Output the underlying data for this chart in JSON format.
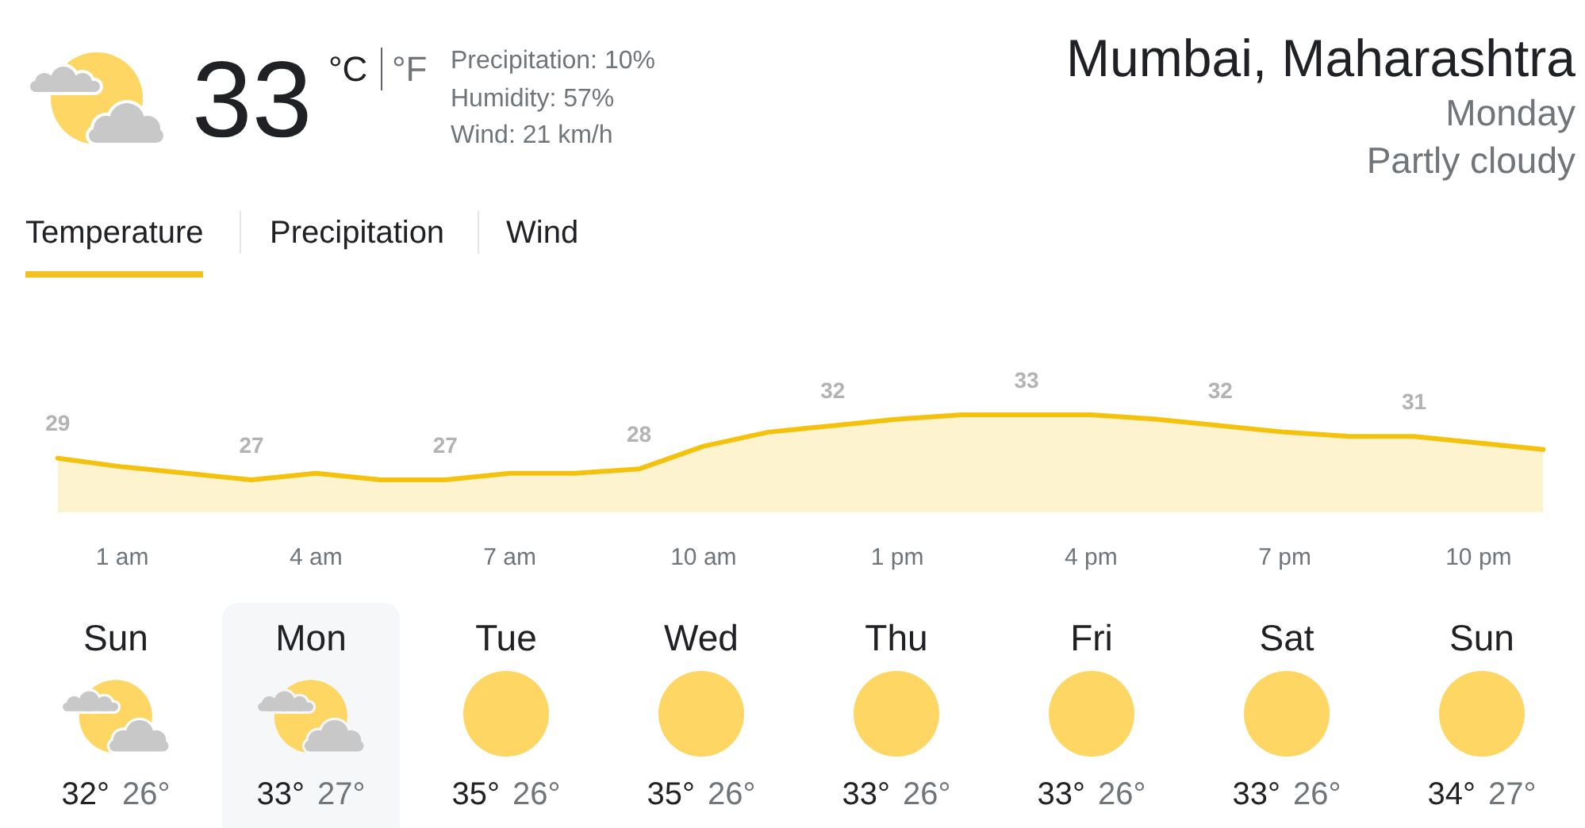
{
  "chart_data": [
    {
      "type": "other",
      "title": "Mumbai, Maharashtra",
      "annotations": [
        "33",
        "°C",
        "°F",
        "Precipitation: 10%",
        "Humidity: 57%",
        "Wind: 21 km/h",
        "Monday",
        "Partly cloudy",
        "Temperature",
        "Precipitation",
        "Wind"
      ]
    },
    {
      "type": "area",
      "categories": [
        null,
        "1 am",
        null,
        null,
        "4 am",
        null,
        null,
        "7 am",
        null,
        null,
        "10 am",
        null,
        null,
        "1 pm",
        null,
        null,
        "4 pm",
        null,
        null,
        "7 pm",
        null,
        null,
        "10 pm",
        null
      ],
      "series": [
        {
          "color": "#f4c20d",
          "values": [
            29,
            28.2,
            27.6,
            27,
            27.6,
            27,
            27,
            27.6,
            27.6,
            28,
            30.1,
            31.4,
            32,
            32.6,
            33,
            33,
            33,
            32.6,
            32,
            31.4,
            31,
            31,
            30.4,
            29.8
          ],
          "value_labels": [
            "29",
            null,
            null,
            "27",
            null,
            null,
            "27",
            null,
            null,
            "28",
            null,
            null,
            "32",
            null,
            null,
            "33",
            null,
            null,
            "32",
            null,
            null,
            "31",
            null,
            null
          ]
        }
      ],
      "tick_labels": "x"
    },
    {
      "type": "other",
      "categories": [
        "Sun",
        "Mon",
        "Tue",
        "Wed",
        "Thu",
        "Fri",
        "Sat",
        "Sun"
      ],
      "series": [
        {
          "values": [
            32,
            33,
            35,
            35,
            33,
            33,
            33,
            34
          ],
          "value_labels": [
            "32°",
            "33°",
            "35°",
            "35°",
            "33°",
            "33°",
            "33°",
            "34°"
          ]
        },
        {
          "values": [
            26,
            27,
            26,
            26,
            26,
            26,
            26,
            27
          ],
          "value_labels": [
            "26°",
            "27°",
            "26°",
            "26°",
            "26°",
            "26°",
            "26°",
            "27°"
          ]
        }
      ]
    }
  ]
}
